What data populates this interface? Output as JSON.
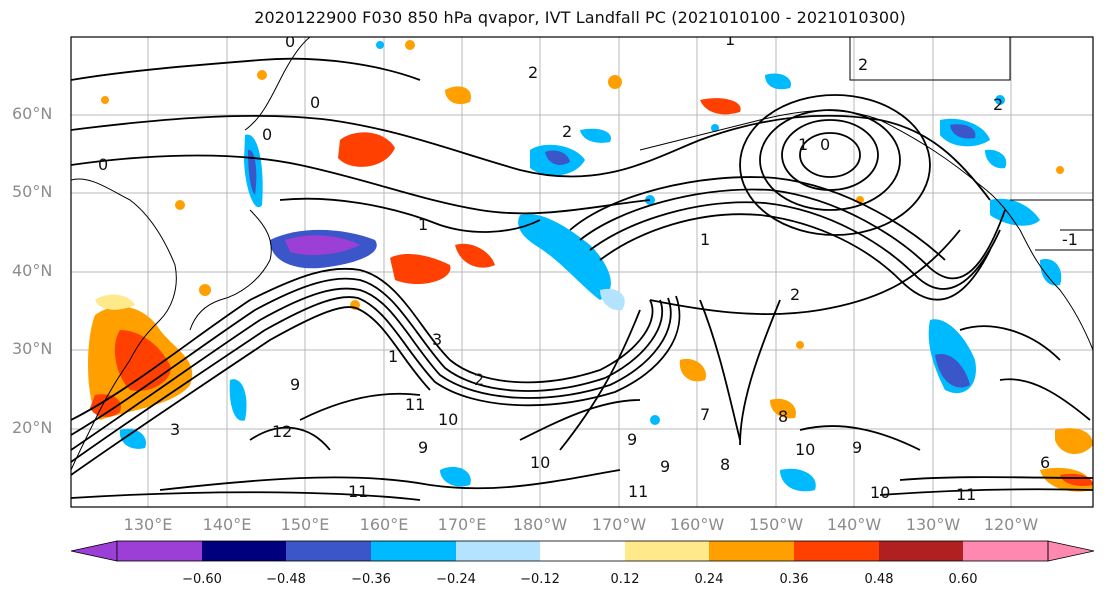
{
  "title": "2020122900 F030 850 hPa qvapor, IVT Landfall PC (2021010100 - 2021010300)",
  "map": {
    "lat_labels": [
      "60°N",
      "50°N",
      "40°N",
      "30°N",
      "20°N"
    ],
    "lon_labels": [
      "130°E",
      "140°E",
      "150°E",
      "160°E",
      "170°E",
      "180°W",
      "170°W",
      "160°W",
      "150°W",
      "140°W",
      "130°W",
      "120°W"
    ],
    "contour_labels": [
      "0",
      "0",
      "0",
      "0",
      "1",
      "2",
      "2",
      "2",
      "1",
      "0",
      "1",
      "1",
      "2",
      "2",
      "-1",
      "3",
      "1",
      "2",
      "9",
      "11",
      "10",
      "9",
      "9",
      "9",
      "8",
      "10",
      "11",
      "11",
      "12",
      "11",
      "10",
      "10",
      "9",
      "8",
      "6",
      "7",
      "3"
    ]
  },
  "colorbar": {
    "colors": [
      "#9c3fd6",
      "#00007f",
      "#3a56c8",
      "#00baff",
      "#b4e3ff",
      "#ffffff",
      "#ffe98b",
      "#ffa000",
      "#ff4000",
      "#b02020",
      "#ff88b0"
    ],
    "ticks": [
      "−0.60",
      "−0.48",
      "−0.36",
      "−0.24",
      "−0.12",
      "0.12",
      "0.24",
      "0.36",
      "0.48",
      "0.60"
    ]
  }
}
